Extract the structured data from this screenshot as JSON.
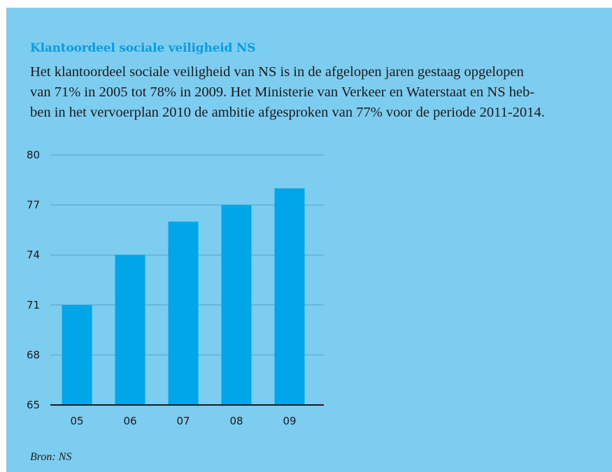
{
  "colors": {
    "background": "#7dcdf1",
    "bar": "#00a6e8",
    "title": "#0a9ce2",
    "gridline": "#5aa0c4",
    "axis": "#1a1a1a"
  },
  "title": "Klantoordeel sociale veiligheid NS",
  "body_lines": [
    "Het klantoordeel sociale veiligheid van NS is in de afgelopen jaren gestaag opgelopen",
    "van 71% in 2005 tot 78% in 2009. Het Ministerie van Verkeer en Waterstaat en NS heb-",
    "ben in het vervoerplan 2010 de ambitie afgesproken van 77% voor de periode 2011-2014."
  ],
  "source": "Bron: NS",
  "chart_data": {
    "type": "bar",
    "categories": [
      "05",
      "06",
      "07",
      "08",
      "09"
    ],
    "values": [
      71,
      74,
      76,
      77,
      78
    ],
    "ylim": [
      65,
      80
    ],
    "yticks": [
      65,
      68,
      71,
      74,
      77,
      80
    ],
    "grid": true,
    "xlabel": "",
    "ylabel": ""
  }
}
